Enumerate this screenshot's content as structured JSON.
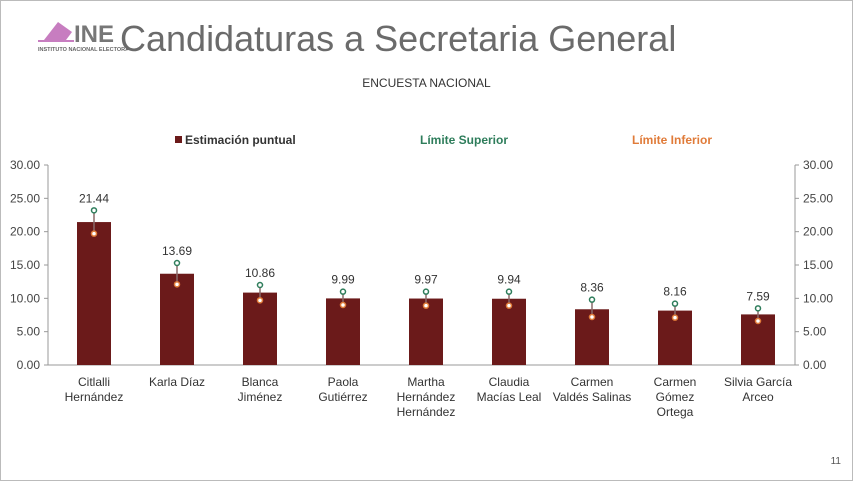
{
  "logo": {
    "text": "INE",
    "subtext": "INSTITUTO NACIONAL ELECTORAL"
  },
  "title": "Candidaturas a Secretaria General",
  "subtitle": "ENCUESTA NACIONAL",
  "page_number": "11",
  "chart_data": {
    "type": "bar",
    "categories": [
      [
        "Citlalli",
        "Hernández"
      ],
      [
        "Karla Díaz"
      ],
      [
        "Blanca",
        "Jiménez"
      ],
      [
        "Paola",
        "Gutiérrez"
      ],
      [
        "Martha",
        "Hernández",
        "Hernández"
      ],
      [
        "Claudia",
        "Macías Leal"
      ],
      [
        "Carmen",
        "Valdés Salinas"
      ],
      [
        "Carmen",
        "Gómez",
        "Ortega"
      ],
      [
        "Silvia García",
        "Arceo"
      ]
    ],
    "series": [
      {
        "name": "Estimación puntual",
        "color": "#6b1a1a",
        "values": [
          21.44,
          13.69,
          10.86,
          9.99,
          9.97,
          9.94,
          8.36,
          8.16,
          7.59
        ]
      },
      {
        "name": "Límite Superior",
        "color": "#2e7d5b",
        "values": [
          23.2,
          15.3,
          12.0,
          11.0,
          11.0,
          11.0,
          9.8,
          9.2,
          8.5
        ]
      },
      {
        "name": "Límite Inferior",
        "color": "#e07b39",
        "values": [
          19.7,
          12.1,
          9.7,
          9.0,
          8.9,
          8.9,
          7.2,
          7.1,
          6.6
        ]
      }
    ],
    "ylim": [
      0,
      30
    ],
    "yticks": [
      "0.00",
      "5.00",
      "10.00",
      "15.00",
      "20.00",
      "25.00",
      "30.00"
    ],
    "data_labels": [
      "21.44",
      "13.69",
      "10.86",
      "9.99",
      "9.97",
      "9.94",
      "8.36",
      "8.16",
      "7.59"
    ],
    "legend_placement": "top",
    "grid": false
  }
}
